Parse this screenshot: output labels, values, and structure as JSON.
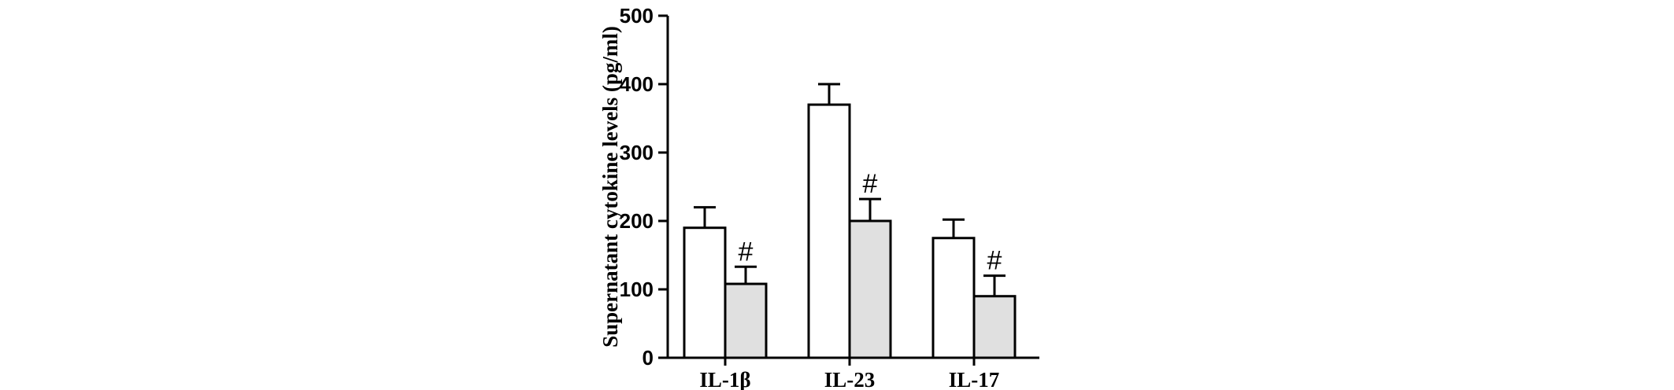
{
  "chart_data": {
    "type": "bar",
    "categories": [
      "IL-1β",
      "IL-23",
      "IL-17"
    ],
    "series": [
      {
        "values": [
          190,
          370,
          175
        ],
        "errors": [
          30,
          30,
          27
        ],
        "fill": "#ffffff"
      },
      {
        "values": [
          108,
          200,
          90
        ],
        "errors": [
          25,
          32,
          30
        ],
        "fill": "#e0e0e0"
      }
    ],
    "annotations": [
      {
        "category": 0,
        "series": 1,
        "text": "#"
      },
      {
        "category": 1,
        "series": 1,
        "text": "#"
      },
      {
        "category": 2,
        "series": 1,
        "text": "#"
      }
    ],
    "ylabel": "Supernatant cytokine levels (pg/ml)",
    "ylim": [
      0,
      500
    ],
    "yticks": [
      0,
      100,
      200,
      300,
      400,
      500
    ],
    "grid": false,
    "legend": "none"
  }
}
